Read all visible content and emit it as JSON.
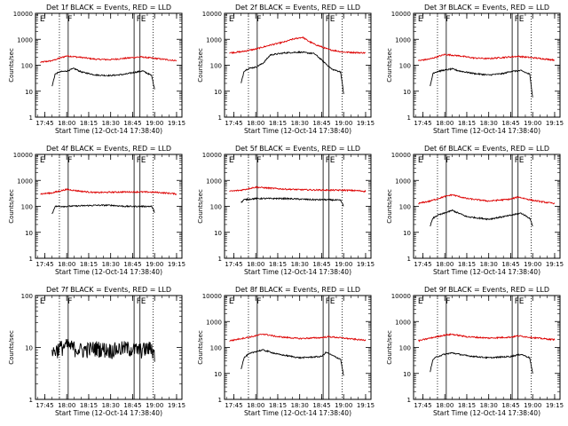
{
  "figure": {
    "xlabel": "Start Time (12-Oct-14 17:38:40)",
    "ylabel": "Counts/sec",
    "time_ticks": [
      "17:45",
      "18:00",
      "18:15",
      "18:30",
      "18:45",
      "19:00",
      "19:15"
    ],
    "y_ticks": [
      "1",
      "10",
      "100",
      "1000",
      "10000"
    ],
    "colors": {
      "events": "#000000",
      "lld": "#dd0000",
      "axes": "#000000"
    }
  },
  "chart_data": [
    {
      "type": "line",
      "title": "Det 1f BLACK = Events, RED = LLD",
      "scale": "log",
      "ylim": [
        1,
        10000
      ],
      "xlim": [
        "17:38:40",
        "19:18:40"
      ],
      "markers": [
        {
          "label": "E",
          "time": "17:41"
        },
        {
          "label": "F",
          "time": "18:00"
        },
        {
          "label": "F",
          "time": "18:47"
        },
        {
          "label": "E",
          "time": "18:50"
        }
      ],
      "vlines": [
        "17:55",
        "18:01",
        "18:46",
        "18:50",
        "18:59"
      ],
      "series": [
        {
          "color": "red",
          "x": [
            "17:42",
            "17:50",
            "18:00",
            "18:10",
            "18:20",
            "18:30",
            "18:40",
            "18:50",
            "19:00",
            "19:10",
            "19:15"
          ],
          "y": [
            130,
            150,
            230,
            200,
            170,
            165,
            185,
            210,
            185,
            160,
            150
          ]
        },
        {
          "color": "black",
          "x": [
            "17:50",
            "17:52",
            "17:55",
            "18:00",
            "18:05",
            "18:10",
            "18:20",
            "18:30",
            "18:40",
            "18:45",
            "18:52",
            "18:58",
            "19:00"
          ],
          "y": [
            15,
            45,
            55,
            60,
            75,
            55,
            42,
            40,
            45,
            52,
            60,
            40,
            12
          ]
        }
      ]
    },
    {
      "type": "line",
      "title": "Det 2f BLACK = Events, RED = LLD",
      "scale": "log",
      "ylim": [
        1,
        10000
      ],
      "xlim": [
        "17:38:40",
        "19:18:40"
      ],
      "markers": [
        {
          "label": "E",
          "time": "17:41"
        },
        {
          "label": "F",
          "time": "18:00"
        },
        {
          "label": "F",
          "time": "18:47"
        },
        {
          "label": "E",
          "time": "18:50"
        }
      ],
      "vlines": [
        "17:55",
        "18:01",
        "18:46",
        "18:50",
        "18:59"
      ],
      "series": [
        {
          "color": "red",
          "x": [
            "17:42",
            "17:50",
            "18:00",
            "18:10",
            "18:20",
            "18:25",
            "18:32",
            "18:36",
            "18:40",
            "18:50",
            "19:00",
            "19:15"
          ],
          "y": [
            300,
            330,
            420,
            600,
            800,
            1000,
            1200,
            850,
            650,
            400,
            320,
            300
          ]
        },
        {
          "color": "black",
          "x": [
            "17:50",
            "17:52",
            "17:55",
            "18:00",
            "18:05",
            "18:10",
            "18:20",
            "18:30",
            "18:40",
            "18:45",
            "18:52",
            "18:58",
            "19:00"
          ],
          "y": [
            20,
            60,
            75,
            85,
            120,
            250,
            300,
            320,
            280,
            160,
            70,
            55,
            8
          ]
        }
      ]
    },
    {
      "type": "line",
      "title": "Det 3f BLACK = Events, RED = LLD",
      "scale": "log",
      "ylim": [
        1,
        10000
      ],
      "xlim": [
        "17:38:40",
        "19:18:40"
      ],
      "markers": [
        {
          "label": "E",
          "time": "17:41"
        },
        {
          "label": "F",
          "time": "18:00"
        },
        {
          "label": "F",
          "time": "18:47"
        },
        {
          "label": "E",
          "time": "18:50"
        }
      ],
      "vlines": [
        "17:55",
        "18:01",
        "18:46",
        "18:50",
        "18:59"
      ],
      "series": [
        {
          "color": "red",
          "x": [
            "17:42",
            "17:50",
            "18:00",
            "18:10",
            "18:20",
            "18:30",
            "18:40",
            "18:50",
            "19:00",
            "19:10",
            "19:15"
          ],
          "y": [
            150,
            175,
            260,
            230,
            190,
            180,
            200,
            220,
            195,
            170,
            160
          ]
        },
        {
          "color": "black",
          "x": [
            "17:50",
            "17:52",
            "17:55",
            "18:00",
            "18:05",
            "18:10",
            "18:20",
            "18:30",
            "18:40",
            "18:45",
            "18:52",
            "18:58",
            "19:00"
          ],
          "y": [
            15,
            50,
            58,
            65,
            72,
            60,
            48,
            42,
            48,
            58,
            62,
            45,
            6
          ]
        }
      ]
    },
    {
      "type": "line",
      "title": "Det 4f BLACK = Events, RED = LLD",
      "scale": "log",
      "ylim": [
        1,
        10000
      ],
      "xlim": [
        "17:38:40",
        "19:18:40"
      ],
      "markers": [
        {
          "label": "E",
          "time": "17:41"
        },
        {
          "label": "F",
          "time": "18:00"
        },
        {
          "label": "F",
          "time": "18:47"
        },
        {
          "label": "E",
          "time": "18:50"
        }
      ],
      "vlines": [
        "17:55",
        "18:01",
        "18:46",
        "18:50",
        "18:59"
      ],
      "series": [
        {
          "color": "red",
          "x": [
            "17:42",
            "17:50",
            "18:00",
            "18:10",
            "18:20",
            "18:30",
            "18:40",
            "18:50",
            "19:00",
            "19:10",
            "19:15"
          ],
          "y": [
            300,
            330,
            450,
            380,
            340,
            350,
            360,
            360,
            350,
            320,
            300
          ]
        },
        {
          "color": "black",
          "x": [
            "17:50",
            "17:52",
            "18:00",
            "18:10",
            "18:20",
            "18:30",
            "18:40",
            "18:50",
            "18:58",
            "19:00"
          ],
          "y": [
            50,
            100,
            100,
            105,
            110,
            110,
            100,
            100,
            100,
            60
          ]
        }
      ]
    },
    {
      "type": "line",
      "title": "Det 5f BLACK = Events, RED = LLD",
      "scale": "log",
      "ylim": [
        1,
        10000
      ],
      "xlim": [
        "17:38:40",
        "19:18:40"
      ],
      "markers": [
        {
          "label": "E",
          "time": "17:41"
        },
        {
          "label": "F",
          "time": "18:00"
        },
        {
          "label": "F",
          "time": "18:47"
        },
        {
          "label": "E",
          "time": "18:50"
        }
      ],
      "vlines": [
        "17:55",
        "18:01",
        "18:46",
        "18:50",
        "18:59"
      ],
      "series": [
        {
          "color": "red",
          "x": [
            "17:42",
            "17:50",
            "18:00",
            "18:10",
            "18:20",
            "18:30",
            "18:40",
            "18:50",
            "19:00",
            "19:10",
            "19:15"
          ],
          "y": [
            380,
            420,
            550,
            500,
            460,
            440,
            430,
            420,
            420,
            400,
            380
          ]
        },
        {
          "color": "black",
          "x": [
            "17:50",
            "17:52",
            "18:00",
            "18:10",
            "18:20",
            "18:30",
            "18:40",
            "18:50",
            "18:58",
            "19:00"
          ],
          "y": [
            140,
            180,
            200,
            200,
            200,
            190,
            180,
            180,
            170,
            100
          ]
        }
      ]
    },
    {
      "type": "line",
      "title": "Det 6f BLACK = Events, RED = LLD",
      "scale": "log",
      "ylim": [
        1,
        10000
      ],
      "xlim": [
        "17:38:40",
        "19:18:40"
      ],
      "markers": [
        {
          "label": "E",
          "time": "17:41"
        },
        {
          "label": "F",
          "time": "18:00"
        },
        {
          "label": "F",
          "time": "18:47"
        },
        {
          "label": "E",
          "time": "18:50"
        }
      ],
      "vlines": [
        "17:55",
        "18:01",
        "18:46",
        "18:50",
        "18:59"
      ],
      "series": [
        {
          "color": "red",
          "x": [
            "17:42",
            "17:50",
            "18:00",
            "18:05",
            "18:15",
            "18:30",
            "18:45",
            "18:50",
            "19:00",
            "19:10",
            "19:15"
          ],
          "y": [
            130,
            160,
            240,
            280,
            200,
            160,
            190,
            230,
            170,
            140,
            130
          ]
        },
        {
          "color": "black",
          "x": [
            "17:50",
            "17:52",
            "17:55",
            "18:00",
            "18:05",
            "18:15",
            "18:30",
            "18:45",
            "18:52",
            "18:58",
            "19:00"
          ],
          "y": [
            18,
            35,
            45,
            55,
            70,
            40,
            32,
            45,
            55,
            35,
            18
          ]
        }
      ]
    },
    {
      "type": "line",
      "title": "Det 7f BLACK = Events, RED = LLD",
      "scale": "log",
      "ylim": [
        1,
        100
      ],
      "xlim": [
        "17:38:40",
        "19:18:40"
      ],
      "markers": [
        {
          "label": "E",
          "time": "17:41"
        },
        {
          "label": "F",
          "time": "18:00"
        },
        {
          "label": "F",
          "time": "18:47"
        },
        {
          "label": "E",
          "time": "18:50"
        }
      ],
      "vlines": [
        "17:55",
        "18:01",
        "18:46",
        "18:50",
        "18:59"
      ],
      "series": [
        {
          "color": "black",
          "x": [
            "17:50",
            "17:55",
            "18:00",
            "18:10",
            "18:20",
            "18:30",
            "18:40",
            "18:50",
            "18:58",
            "19:00"
          ],
          "y": [
            8,
            10,
            11,
            9,
            10,
            9,
            10,
            9,
            10,
            7
          ]
        }
      ]
    },
    {
      "type": "line",
      "title": "Det 8f BLACK = Events, RED = LLD",
      "scale": "log",
      "ylim": [
        1,
        10000
      ],
      "xlim": [
        "17:38:40",
        "19:18:40"
      ],
      "markers": [
        {
          "label": "E",
          "time": "17:41"
        },
        {
          "label": "F",
          "time": "18:00"
        },
        {
          "label": "F",
          "time": "18:47"
        },
        {
          "label": "E",
          "time": "18:50"
        }
      ],
      "vlines": [
        "17:55",
        "18:01",
        "18:46",
        "18:50",
        "18:59"
      ],
      "series": [
        {
          "color": "red",
          "x": [
            "17:42",
            "17:50",
            "18:00",
            "18:05",
            "18:15",
            "18:30",
            "18:45",
            "18:50",
            "19:00",
            "19:10",
            "19:15"
          ],
          "y": [
            180,
            220,
            280,
            330,
            260,
            220,
            240,
            260,
            230,
            200,
            190
          ]
        },
        {
          "color": "black",
          "x": [
            "17:50",
            "17:52",
            "17:55",
            "18:00",
            "18:05",
            "18:15",
            "18:30",
            "18:45",
            "18:48",
            "18:52",
            "18:58",
            "19:00"
          ],
          "y": [
            15,
            40,
            55,
            70,
            80,
            55,
            40,
            45,
            65,
            50,
            35,
            8
          ]
        }
      ]
    },
    {
      "type": "line",
      "title": "Det 9f BLACK = Events, RED = LLD",
      "scale": "log",
      "ylim": [
        1,
        10000
      ],
      "xlim": [
        "17:38:40",
        "19:18:40"
      ],
      "markers": [
        {
          "label": "E",
          "time": "17:41"
        },
        {
          "label": "F",
          "time": "18:00"
        },
        {
          "label": "F",
          "time": "18:47"
        },
        {
          "label": "E",
          "time": "18:50"
        }
      ],
      "vlines": [
        "17:55",
        "18:01",
        "18:46",
        "18:50",
        "18:59"
      ],
      "series": [
        {
          "color": "red",
          "x": [
            "17:42",
            "17:50",
            "18:00",
            "18:05",
            "18:15",
            "18:30",
            "18:45",
            "18:50",
            "19:00",
            "19:10",
            "19:15"
          ],
          "y": [
            180,
            230,
            300,
            320,
            260,
            230,
            250,
            280,
            240,
            210,
            200
          ]
        },
        {
          "color": "black",
          "x": [
            "17:50",
            "17:52",
            "17:55",
            "18:00",
            "18:05",
            "18:15",
            "18:30",
            "18:45",
            "18:52",
            "18:58",
            "19:00"
          ],
          "y": [
            12,
            35,
            45,
            55,
            62,
            48,
            40,
            45,
            55,
            40,
            10
          ]
        }
      ]
    }
  ]
}
